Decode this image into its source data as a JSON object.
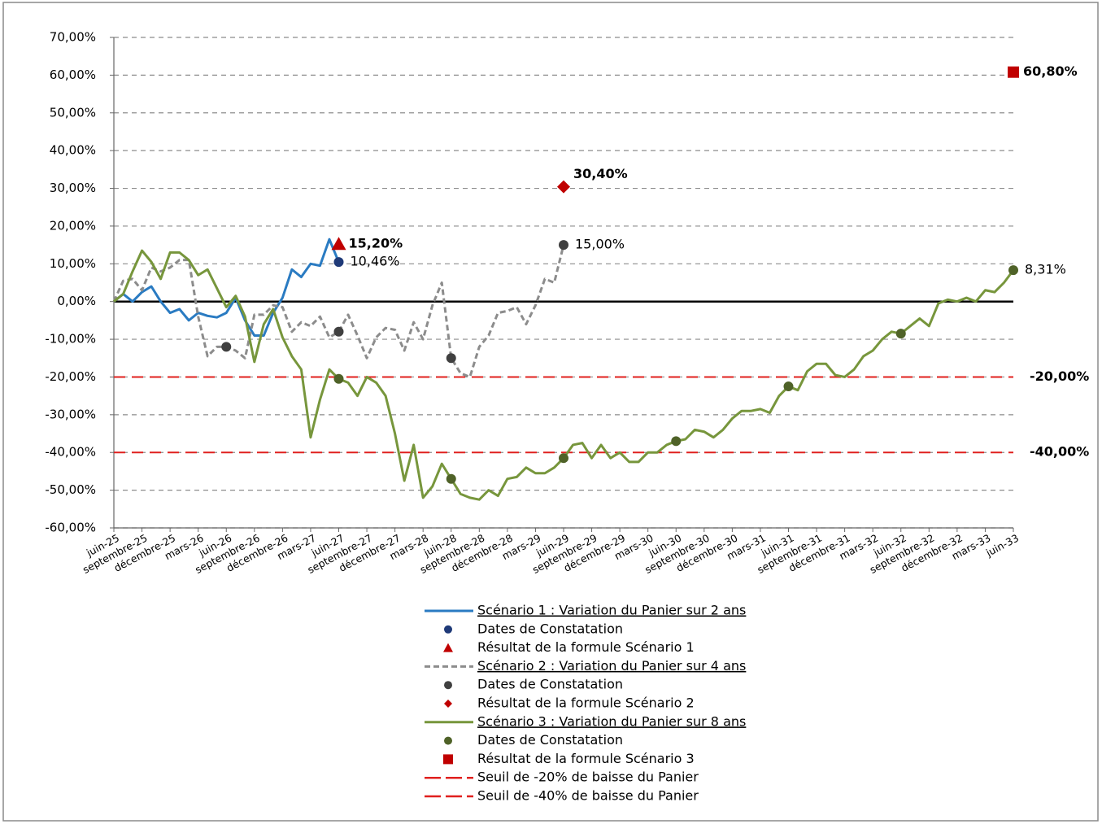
{
  "chart_data": {
    "type": "line",
    "categories": [
      "juin-25",
      null,
      null,
      "septembre-25",
      null,
      null,
      "décembre-25",
      null,
      null,
      "mars-26",
      null,
      null,
      "juin-26",
      null,
      null,
      "septembre-26",
      null,
      null,
      "décembre-26",
      null,
      null,
      "mars-27",
      null,
      null,
      "juin-27",
      null,
      null,
      "septembre-27",
      null,
      null,
      "décembre-27",
      null,
      null,
      "mars-28",
      null,
      null,
      "juin-28",
      null,
      null,
      "septembre-28",
      null,
      null,
      "décembre-28",
      null,
      null,
      "mars-29",
      null,
      null,
      "juin-29",
      null,
      null,
      "septembre-29",
      null,
      null,
      "décembre-29",
      null,
      null,
      "mars-30",
      null,
      null,
      "juin-30",
      null,
      null,
      "septembre-30",
      null,
      null,
      "décembre-30",
      null,
      null,
      "mars-31",
      null,
      null,
      "juin-31",
      null,
      null,
      "septembre-31",
      null,
      null,
      "décembre-31",
      null,
      null,
      "mars-32",
      null,
      null,
      "juin-32",
      null,
      null,
      "septembre-32",
      null,
      null,
      "décembre-32",
      null,
      null,
      "mars-33",
      null,
      null,
      "juin-33"
    ],
    "ylim": [
      -60,
      70
    ],
    "yticks": [
      {
        "value": -60,
        "label": "-60,00%"
      },
      {
        "value": -50,
        "label": "-50,00%"
      },
      {
        "value": -40,
        "label": "-40,00%"
      },
      {
        "value": -30,
        "label": "-30,00%"
      },
      {
        "value": -20,
        "label": "-20,00%"
      },
      {
        "value": -10,
        "label": "-10,00%"
      },
      {
        "value": 0,
        "label": "0,00%"
      },
      {
        "value": 10,
        "label": "10,00%"
      },
      {
        "value": 20,
        "label": "20,00%"
      },
      {
        "value": 30,
        "label": "30,00%"
      },
      {
        "value": 40,
        "label": "40,00%"
      },
      {
        "value": 50,
        "label": "50,00%"
      },
      {
        "value": 60,
        "label": "60,00%"
      },
      {
        "value": 70,
        "label": "70,00%"
      }
    ],
    "grid": true,
    "series": [
      {
        "name": "Scénario 1 : Variation du Panier sur 2 ans",
        "mark": "line",
        "color": "#2a7bc2",
        "values": [
          0,
          2,
          0,
          2.5,
          4,
          0,
          -3,
          -2,
          -5,
          -3,
          -3.8,
          -4.2,
          -3,
          1,
          -5,
          -9,
          -9,
          -3,
          1,
          8.5,
          6.5,
          10,
          9.5,
          16.5,
          10.46,
          null,
          null,
          null,
          null,
          null,
          null,
          null,
          null,
          null,
          null,
          null,
          null,
          null,
          null,
          null,
          null,
          null,
          null,
          null,
          null,
          null,
          null,
          null,
          null,
          null,
          null,
          null,
          null,
          null,
          null,
          null,
          null,
          null,
          null,
          null,
          null,
          null,
          null,
          null,
          null,
          null,
          null,
          null,
          null,
          null,
          null,
          null,
          null,
          null,
          null,
          null,
          null,
          null,
          null,
          null,
          null,
          null,
          null,
          null,
          null,
          null,
          null,
          null,
          null,
          null,
          null,
          null,
          null,
          null,
          null,
          null,
          null
        ]
      },
      {
        "name": "Dates de Constatation",
        "mark": "dot",
        "color": "#1f3a78",
        "x": [
          "juin-27"
        ],
        "values": [
          10.46
        ],
        "value_labels": [
          "10,46%"
        ]
      },
      {
        "name": "Résultat de la formule Scénario 1",
        "mark": "triangle",
        "color": "#c00000",
        "x": [
          "juin-27"
        ],
        "values": [
          15.2
        ],
        "value_labels": [
          "15,20%"
        ]
      },
      {
        "name": "Scénario 2 : Variation du Panier sur 4 ans",
        "mark": "dashed",
        "color": "#8c8c8c",
        "values": [
          0,
          5.5,
          6,
          3,
          9,
          8,
          9,
          11,
          11,
          -4,
          -14.5,
          -12,
          -12,
          -13,
          -15,
          -3.5,
          -3.5,
          -1,
          -1.5,
          -8,
          -5.5,
          -6.5,
          -4,
          -9.5,
          -8,
          -3.5,
          -9,
          -15,
          -9.5,
          -7,
          -7.5,
          -13,
          -5.5,
          -10,
          -1,
          5,
          -15,
          -19,
          -20,
          -12,
          -9,
          -3,
          -2.5,
          -1.5,
          -6,
          -1,
          6,
          5,
          15,
          null,
          null,
          null,
          null,
          null,
          null,
          null,
          null,
          null,
          null,
          null,
          null,
          null,
          null,
          null,
          null,
          null,
          null,
          null,
          null,
          null,
          null,
          null,
          null,
          null,
          null,
          null,
          null,
          null,
          null,
          null,
          null,
          null,
          null,
          null,
          null,
          null,
          null,
          null,
          null,
          null,
          null,
          null,
          null,
          null,
          null,
          null,
          null
        ]
      },
      {
        "name": "Dates de Constatation",
        "mark": "dot",
        "color": "#404040",
        "x": [
          "juin-26",
          "juin-27",
          "juin-28",
          "juin-29"
        ],
        "values": [
          -12,
          -8,
          -15,
          15
        ],
        "value_labels": [
          null,
          null,
          null,
          "15,00%"
        ]
      },
      {
        "name": "Résultat de la formule Scénario 2",
        "mark": "diamond",
        "color": "#c00000",
        "x": [
          "juin-29"
        ],
        "values": [
          30.4
        ],
        "value_labels": [
          "30,40%"
        ]
      },
      {
        "name": "Scénario 3 : Variation du Panier sur 8 ans",
        "mark": "line",
        "color": "#77963c",
        "values": [
          0,
          2,
          8,
          13.5,
          10.5,
          6,
          13,
          13,
          11,
          7,
          8.5,
          3.5,
          -1.5,
          1.5,
          -4,
          -16,
          -6,
          -2,
          -9.5,
          -14.5,
          -18,
          -36,
          -26,
          -18,
          -20.5,
          -21.5,
          -25,
          -20,
          -21.5,
          -25,
          -35,
          -47.5,
          -38,
          -52,
          -49,
          -43,
          -47,
          -51,
          -52,
          -52.5,
          -50,
          -51.5,
          -47,
          -46.5,
          -44,
          -45.5,
          -45.5,
          -44,
          -41.5,
          -38,
          -37.5,
          -41.5,
          -38,
          -41.5,
          -40,
          -42.5,
          -42.5,
          -40,
          -40,
          -38,
          -37,
          -36.5,
          -34,
          -34.5,
          -36,
          -34,
          -31,
          -29,
          -29,
          -28.5,
          -29.5,
          -25,
          -22.5,
          -23.5,
          -18.5,
          -16.5,
          -16.5,
          -19.5,
          -20,
          -18,
          -14.5,
          -13,
          -10,
          -8,
          -8.5,
          -6.5,
          -4.5,
          -6.5,
          -0.5,
          0.5,
          0,
          1,
          0,
          3,
          2.5,
          5,
          8.31
        ]
      },
      {
        "name": "Dates de Constatation",
        "mark": "dot",
        "color": "#4f6228",
        "x": [
          "juin-27",
          "juin-28",
          "juin-29",
          "juin-30",
          "juin-31",
          "juin-32",
          "juin-33"
        ],
        "values": [
          -20.5,
          -47,
          -41.5,
          -37,
          -22.5,
          -8.5,
          8.31
        ],
        "value_labels": [
          null,
          null,
          null,
          null,
          null,
          null,
          "8,31%"
        ]
      },
      {
        "name": "Résultat de la formule Scénario 3",
        "mark": "square",
        "color": "#c00000",
        "x": [
          "juin-33"
        ],
        "values": [
          60.8
        ],
        "value_labels": [
          "60,80%"
        ]
      }
    ],
    "reference_lines": [
      {
        "name": "Seuil de -20% de baisse du Panier",
        "value": -20,
        "label": "-20,00%",
        "color": "#e0201e"
      },
      {
        "name": "Seuil de -40% de baisse du Panier",
        "value": -40,
        "label": "-40,00%",
        "color": "#e0201e"
      }
    ]
  }
}
